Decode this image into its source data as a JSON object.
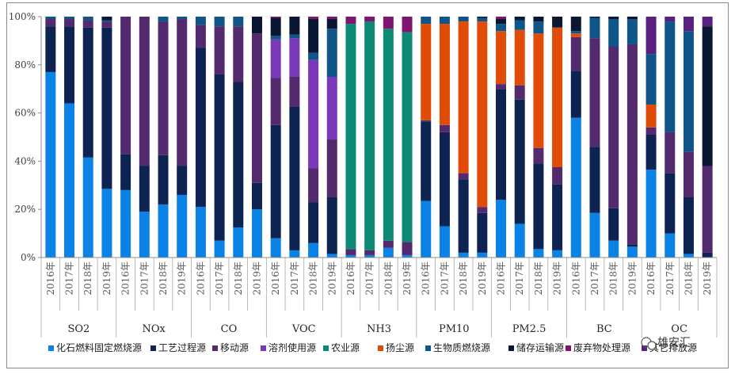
{
  "chart_data": {
    "type": "bar",
    "stacked": true,
    "normalized": true,
    "ylim": [
      0,
      100
    ],
    "y_ticks": [
      "0%",
      "20%",
      "40%",
      "60%",
      "80%",
      "100%"
    ],
    "groups": [
      "SO2",
      "NOx",
      "CO",
      "VOC",
      "NH3",
      "PM10",
      "PM2.5",
      "BC",
      "OC"
    ],
    "years": [
      "2016年",
      "2017年",
      "2018年",
      "2019年"
    ],
    "series": [
      {
        "name": "化石燃料固定燃烧源",
        "color": "#0a82e6"
      },
      {
        "name": "工艺过程源",
        "color": "#0d2352"
      },
      {
        "name": "移动源",
        "color": "#532a6e"
      },
      {
        "name": "溶剂使用源",
        "color": "#7a3ab8"
      },
      {
        "name": "农业源",
        "color": "#0e8a74"
      },
      {
        "name": "扬尘源",
        "color": "#e04b08"
      },
      {
        "name": "生物质燃烧源",
        "color": "#0f5588"
      },
      {
        "name": "储存运输源",
        "color": "#0a1733"
      },
      {
        "name": "废弃物处理源",
        "color": "#7e1670"
      },
      {
        "name": "其它排放源",
        "color": "#5a2080"
      }
    ],
    "values": [
      [
        [
          77,
          19,
          3,
          0,
          0,
          0,
          1,
          0,
          0,
          0
        ],
        [
          64,
          32,
          3,
          0,
          0,
          0,
          1,
          0,
          0,
          0
        ],
        [
          41.5,
          54,
          3,
          0,
          0,
          0,
          1.5,
          0,
          0,
          0
        ],
        [
          28.5,
          67,
          2.5,
          0,
          0,
          0,
          0.5,
          1.5,
          0,
          0
        ]
      ],
      [
        [
          28,
          15,
          57,
          0,
          0,
          0,
          0,
          0,
          0,
          0
        ],
        [
          19,
          19,
          62,
          0,
          0,
          0,
          0,
          0,
          0,
          0
        ],
        [
          22,
          20.5,
          55.5,
          0,
          0,
          0,
          2,
          0,
          0,
          0
        ],
        [
          26,
          12,
          61,
          0,
          0,
          0,
          1,
          0,
          0,
          0
        ]
      ],
      [
        [
          21,
          66,
          9.5,
          0,
          0,
          0,
          3.5,
          0,
          0,
          0
        ],
        [
          7,
          69,
          20,
          0,
          0,
          0,
          4,
          0,
          0,
          0
        ],
        [
          12.5,
          60.5,
          23,
          0,
          0,
          0,
          4,
          0,
          0,
          0
        ],
        [
          20,
          11,
          62,
          0,
          0,
          0,
          0,
          7,
          0,
          0
        ]
      ],
      [
        [
          8,
          47,
          19.5,
          16,
          0,
          0,
          1.5,
          7.5,
          0.5,
          0
        ],
        [
          3,
          59.5,
          12.5,
          16,
          0,
          0,
          1.5,
          7.5,
          0,
          0
        ],
        [
          6,
          17,
          14,
          45,
          0,
          0,
          3,
          14,
          1,
          0
        ],
        [
          1.5,
          23.5,
          24,
          26,
          0,
          0,
          20,
          4,
          1,
          0
        ]
      ],
      [
        [
          1,
          0,
          2.5,
          0,
          93.5,
          0,
          0,
          0,
          3,
          0
        ],
        [
          1,
          0,
          2,
          0,
          95,
          0,
          0,
          0,
          2,
          0
        ],
        [
          4,
          0,
          3,
          0,
          88,
          0,
          0,
          0,
          5,
          0
        ],
        [
          1,
          0,
          5.5,
          0,
          87,
          0,
          0,
          0,
          6.5,
          0
        ]
      ],
      [
        [
          23.5,
          33,
          0.5,
          0,
          0,
          40,
          3,
          0,
          0,
          0
        ],
        [
          13,
          39,
          3,
          0,
          0,
          42,
          3,
          0,
          0,
          0
        ],
        [
          2,
          30.5,
          2.5,
          0,
          0,
          63,
          2,
          0,
          0,
          0
        ],
        [
          2,
          16.5,
          2.5,
          0,
          0,
          77,
          1.5,
          0.5,
          0,
          0
        ]
      ],
      [
        [
          24,
          46,
          2,
          0,
          0,
          22,
          3,
          2,
          1,
          0
        ],
        [
          14,
          51.5,
          6,
          0,
          0,
          23,
          4,
          1.5,
          0,
          0
        ],
        [
          3.5,
          35.5,
          6.5,
          0,
          0,
          47.5,
          5,
          2,
          0,
          0
        ],
        [
          3,
          27.5,
          7,
          0,
          0,
          58,
          0,
          4.5,
          0,
          0
        ]
      ],
      [
        [
          58,
          19.5,
          14,
          0,
          0,
          1.5,
          1,
          6,
          0,
          0
        ],
        [
          18.5,
          27.5,
          45,
          0,
          0,
          0,
          8.5,
          0.5,
          0,
          0
        ],
        [
          7,
          13.5,
          67,
          0,
          0,
          0,
          11.5,
          1,
          0,
          0
        ],
        [
          4.5,
          1,
          83,
          0,
          0,
          0,
          10.5,
          1,
          0,
          0
        ]
      ],
      [
        [
          36.5,
          14.5,
          3,
          0,
          0,
          9.5,
          21,
          0,
          0,
          15.5
        ],
        [
          10,
          25,
          17,
          0,
          0,
          0,
          46,
          0,
          0,
          2
        ],
        [
          1.5,
          23.5,
          19,
          0,
          0,
          0,
          50,
          0,
          0,
          6
        ],
        [
          0,
          2,
          36,
          0,
          0,
          0,
          0,
          58,
          0,
          4
        ]
      ]
    ]
  },
  "watermark": {
    "text": "雄安汇"
  }
}
